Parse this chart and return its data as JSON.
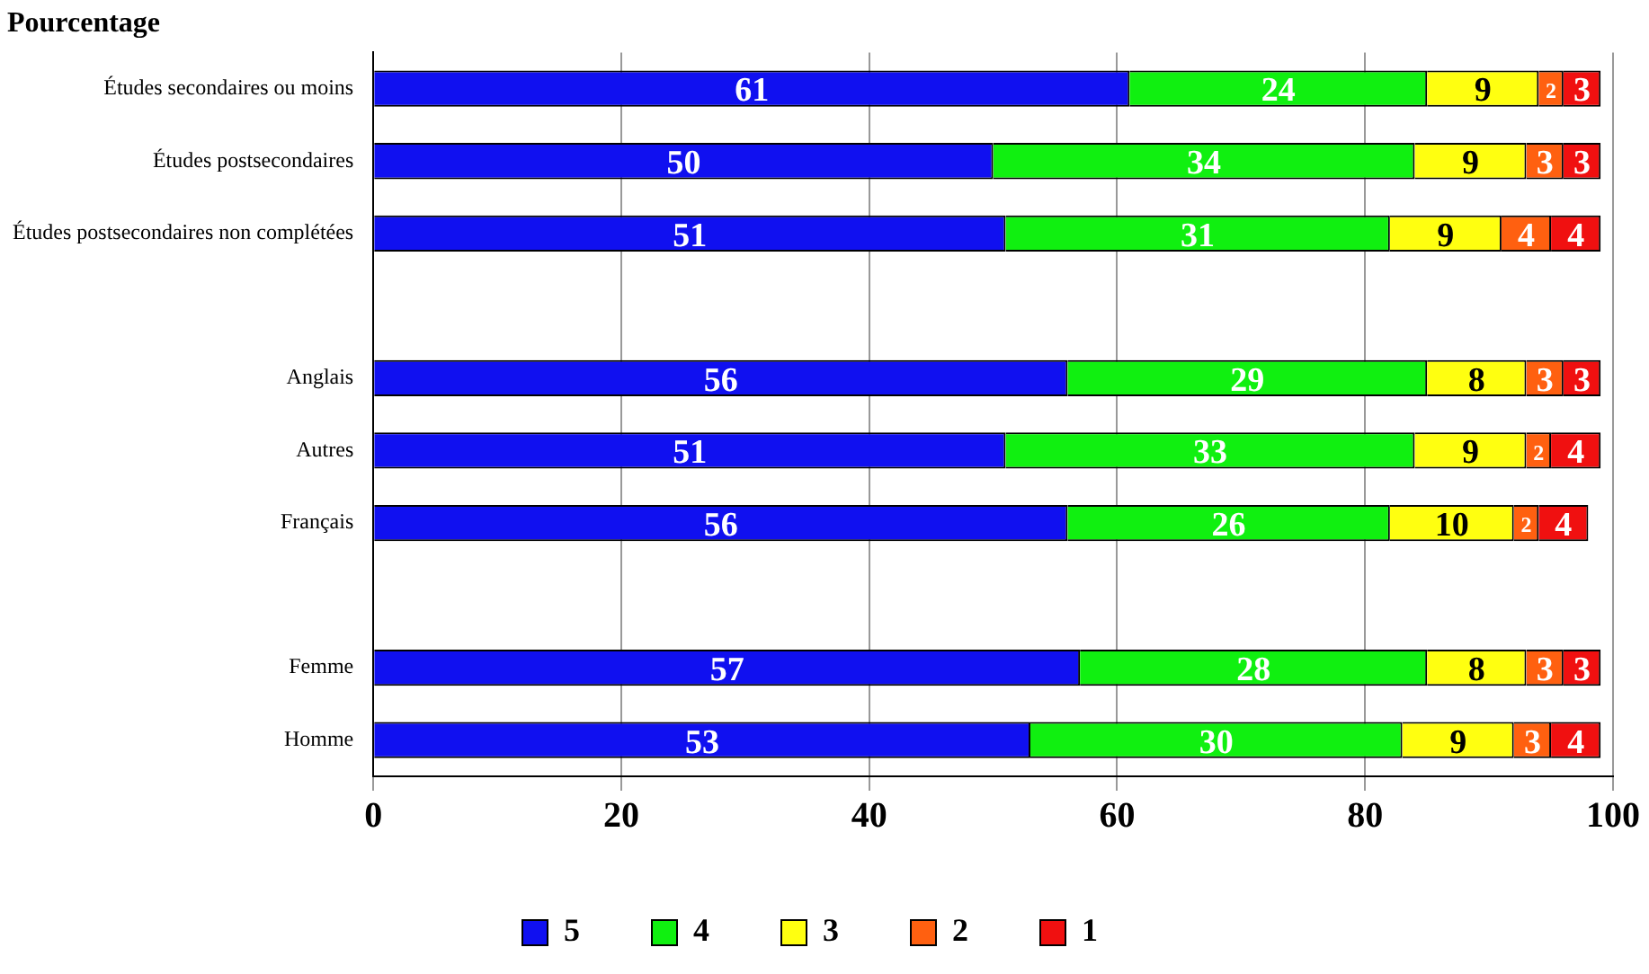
{
  "chart_data": {
    "type": "bar",
    "orientation": "horizontal",
    "stacked": true,
    "title": "Pourcentage",
    "categories": [
      "Études secondaires ou moins",
      "Études postsecondaires",
      "Études postsecondaires non complétées",
      null,
      "Anglais",
      "Autres",
      "Français",
      null,
      "Femme",
      "Homme"
    ],
    "series": [
      {
        "name": "5",
        "color": "#1010f0",
        "values": [
          61,
          50,
          51,
          null,
          56,
          51,
          56,
          null,
          57,
          53
        ]
      },
      {
        "name": "4",
        "color": "#10f010",
        "values": [
          24,
          34,
          31,
          null,
          29,
          33,
          26,
          null,
          28,
          30
        ]
      },
      {
        "name": "3",
        "color": "#ffff10",
        "values": [
          9,
          9,
          9,
          null,
          8,
          9,
          10,
          null,
          8,
          9
        ]
      },
      {
        "name": "2",
        "color": "#ff6010",
        "values": [
          2,
          3,
          4,
          null,
          3,
          2,
          2,
          null,
          3,
          3
        ]
      },
      {
        "name": "1",
        "color": "#f01010",
        "values": [
          3,
          3,
          4,
          null,
          3,
          4,
          4,
          null,
          3,
          4
        ]
      }
    ],
    "xlim": [
      0,
      100
    ],
    "xticks": [
      0,
      20,
      40,
      60,
      80,
      100
    ],
    "grid": "x",
    "legend": "bottom",
    "data_labels": true
  }
}
